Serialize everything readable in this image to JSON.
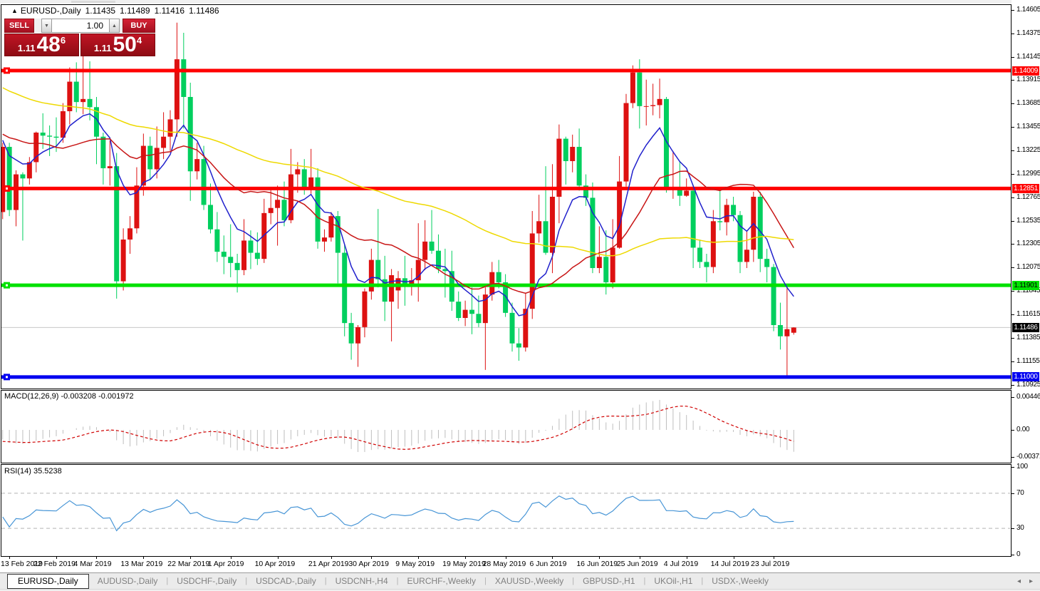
{
  "header": {
    "direction_icon": "▲",
    "symbol": "EURUSD-,Daily",
    "open": "1.11435",
    "high": "1.11489",
    "low": "1.11416",
    "close": "1.11486"
  },
  "one_click": {
    "sell_label": "SELL",
    "buy_label": "BUY",
    "volume": "1.00",
    "spinner_down_icon": "▼",
    "spinner_up_icon": "▲",
    "sell_price": {
      "prefix": "1.11",
      "digits": "48",
      "pip": "6"
    },
    "buy_price": {
      "prefix": "1.11",
      "digits": "50",
      "pip": "4"
    }
  },
  "chart_data": {
    "type": "candlestick",
    "symbol": "EURUSD-",
    "timeframe": "Daily",
    "colors": {
      "bull": "#dd1111",
      "bear": "#00cf5e",
      "ma_fast": "#2020cc",
      "ma_mid": "#c81616",
      "ma_slow": "#eed900",
      "macd_hist": "#bebebe",
      "macd_signal": "#d00000",
      "rsi": "#4795d6",
      "current_price_line": "#c8c8c8",
      "hline_red": "#ff0000",
      "hline_green": "#00e100",
      "hline_blue": "#0000f0"
    },
    "note": "bull candles are red, bear candles are green (CN color scheme)",
    "candles": [
      [
        "2019-02-12",
        1.1262,
        1.133,
        1.1255,
        1.1326
      ],
      [
        "2019-02-13",
        1.1326,
        1.133,
        1.1258,
        1.1264
      ],
      [
        "2019-02-14",
        1.1264,
        1.1303,
        1.1248,
        1.1299
      ],
      [
        "2019-02-15",
        1.1299,
        1.1301,
        1.1234,
        1.1295
      ],
      [
        "2019-02-18",
        1.1295,
        1.1316,
        1.1289,
        1.1311
      ],
      [
        "2019-02-19",
        1.1311,
        1.1341,
        1.1301,
        1.134
      ],
      [
        "2019-02-20",
        1.134,
        1.1359,
        1.1324,
        1.1337
      ],
      [
        "2019-02-21",
        1.1337,
        1.1347,
        1.1317,
        1.1336
      ],
      [
        "2019-02-22",
        1.1336,
        1.1355,
        1.1321,
        1.1335
      ],
      [
        "2019-02-25",
        1.1335,
        1.1369,
        1.133,
        1.1361
      ],
      [
        "2019-02-26",
        1.1361,
        1.1404,
        1.1348,
        1.139
      ],
      [
        "2019-02-27",
        1.139,
        1.1409,
        1.136,
        1.137
      ],
      [
        "2019-02-28",
        1.137,
        1.1421,
        1.1358,
        1.1373
      ],
      [
        "2019-03-01",
        1.1373,
        1.141,
        1.1352,
        1.1365
      ],
      [
        "2019-03-04",
        1.1365,
        1.1375,
        1.1309,
        1.1336
      ],
      [
        "2019-03-05",
        1.1336,
        1.134,
        1.1289,
        1.1305
      ],
      [
        "2019-03-06",
        1.1305,
        1.1332,
        1.1288,
        1.1307
      ],
      [
        "2019-03-07",
        1.1307,
        1.132,
        1.1177,
        1.1194
      ],
      [
        "2019-03-08",
        1.1194,
        1.1246,
        1.1185,
        1.1235
      ],
      [
        "2019-03-11",
        1.1235,
        1.1258,
        1.1221,
        1.1246
      ],
      [
        "2019-03-12",
        1.1246,
        1.1306,
        1.1241,
        1.1288
      ],
      [
        "2019-03-13",
        1.1288,
        1.1339,
        1.1278,
        1.1327
      ],
      [
        "2019-03-14",
        1.1327,
        1.1336,
        1.1294,
        1.1304
      ],
      [
        "2019-03-15",
        1.1304,
        1.1346,
        1.1295,
        1.1325
      ],
      [
        "2019-03-18",
        1.1325,
        1.136,
        1.1314,
        1.1336
      ],
      [
        "2019-03-19",
        1.1336,
        1.1362,
        1.1322,
        1.1353
      ],
      [
        "2019-03-20",
        1.1353,
        1.1448,
        1.1336,
        1.1412
      ],
      [
        "2019-03-21",
        1.1412,
        1.1438,
        1.1344,
        1.1375
      ],
      [
        "2019-03-22",
        1.1375,
        1.1389,
        1.1273,
        1.1302
      ],
      [
        "2019-03-25",
        1.1302,
        1.133,
        1.1294,
        1.1314
      ],
      [
        "2019-03-26",
        1.1314,
        1.1327,
        1.1264,
        1.1269
      ],
      [
        "2019-03-27",
        1.1269,
        1.129,
        1.1241,
        1.1245
      ],
      [
        "2019-03-28",
        1.1245,
        1.1262,
        1.1213,
        1.1223
      ],
      [
        "2019-03-29",
        1.1223,
        1.1239,
        1.1201,
        1.1218
      ],
      [
        "2019-04-01",
        1.1218,
        1.125,
        1.1198,
        1.1212
      ],
      [
        "2019-04-02",
        1.1212,
        1.1221,
        1.1183,
        1.1205
      ],
      [
        "2019-04-03",
        1.1205,
        1.1255,
        1.12,
        1.1234
      ],
      [
        "2019-04-04",
        1.1234,
        1.1244,
        1.1206,
        1.1222
      ],
      [
        "2019-04-05",
        1.1222,
        1.1242,
        1.121,
        1.1216
      ],
      [
        "2019-04-08",
        1.1216,
        1.1275,
        1.1212,
        1.1261
      ],
      [
        "2019-04-09",
        1.1261,
        1.1285,
        1.125,
        1.1266
      ],
      [
        "2019-04-10",
        1.1266,
        1.1288,
        1.1229,
        1.1274
      ],
      [
        "2019-04-11",
        1.1274,
        1.1292,
        1.1248,
        1.1254
      ],
      [
        "2019-04-12",
        1.1254,
        1.1324,
        1.1251,
        1.1299
      ],
      [
        "2019-04-15",
        1.1299,
        1.1311,
        1.1281,
        1.1304
      ],
      [
        "2019-04-16",
        1.1304,
        1.1314,
        1.1279,
        1.1284
      ],
      [
        "2019-04-17",
        1.1284,
        1.1324,
        1.128,
        1.1296
      ],
      [
        "2019-04-18",
        1.1296,
        1.1305,
        1.1226,
        1.1233
      ],
      [
        "2019-04-19",
        1.1233,
        1.1245,
        1.1223,
        1.1237
      ],
      [
        "2019-04-22",
        1.1237,
        1.1262,
        1.1233,
        1.1258
      ],
      [
        "2019-04-23",
        1.1258,
        1.1263,
        1.1192,
        1.1222
      ],
      [
        "2019-04-24",
        1.1222,
        1.123,
        1.114,
        1.1153
      ],
      [
        "2019-04-25",
        1.1153,
        1.1163,
        1.1117,
        1.1133
      ],
      [
        "2019-04-26",
        1.1133,
        1.1151,
        1.111,
        1.1149
      ],
      [
        "2019-04-29",
        1.1149,
        1.1187,
        1.1139,
        1.1184
      ],
      [
        "2019-04-30",
        1.1184,
        1.1226,
        1.1176,
        1.1215
      ],
      [
        "2019-05-01",
        1.1215,
        1.1265,
        1.1188,
        1.1196
      ],
      [
        "2019-05-02",
        1.1196,
        1.1219,
        1.1155,
        1.1174
      ],
      [
        "2019-05-03",
        1.1174,
        1.1206,
        1.1135,
        1.12
      ],
      [
        "2019-05-06",
        1.1185,
        1.1204,
        1.1167,
        1.1197
      ],
      [
        "2019-05-07",
        1.1197,
        1.1219,
        1.117,
        1.119
      ],
      [
        "2019-05-08",
        1.119,
        1.1207,
        1.118,
        1.1195
      ],
      [
        "2019-05-09",
        1.1195,
        1.1251,
        1.1174,
        1.1215
      ],
      [
        "2019-05-10",
        1.1215,
        1.1254,
        1.1205,
        1.1233
      ],
      [
        "2019-05-13",
        1.1233,
        1.1264,
        1.1221,
        1.1224
      ],
      [
        "2019-05-14",
        1.1224,
        1.124,
        1.1202,
        1.1206
      ],
      [
        "2019-05-15",
        1.1206,
        1.1226,
        1.1178,
        1.1204
      ],
      [
        "2019-05-16",
        1.1204,
        1.1224,
        1.1165,
        1.1174
      ],
      [
        "2019-05-17",
        1.1174,
        1.1184,
        1.1155,
        1.1158
      ],
      [
        "2019-05-20",
        1.1158,
        1.1175,
        1.115,
        1.1166
      ],
      [
        "2019-05-21",
        1.1166,
        1.1188,
        1.1142,
        1.1162
      ],
      [
        "2019-05-22",
        1.1162,
        1.118,
        1.1149,
        1.1153
      ],
      [
        "2019-05-23",
        1.1153,
        1.1188,
        1.1107,
        1.1181
      ],
      [
        "2019-05-24",
        1.1181,
        1.1213,
        1.1175,
        1.1203
      ],
      [
        "2019-05-27",
        1.1203,
        1.1215,
        1.1187,
        1.1193
      ],
      [
        "2019-05-28",
        1.1193,
        1.1201,
        1.1159,
        1.1163
      ],
      [
        "2019-05-29",
        1.1163,
        1.1173,
        1.1125,
        1.1133
      ],
      [
        "2019-05-30",
        1.1133,
        1.1148,
        1.1116,
        1.1129
      ],
      [
        "2019-05-31",
        1.1129,
        1.1182,
        1.1125,
        1.1167
      ],
      [
        "2019-06-03",
        1.1167,
        1.1263,
        1.1157,
        1.1241
      ],
      [
        "2019-06-04",
        1.1241,
        1.1279,
        1.1232,
        1.1253
      ],
      [
        "2019-06-05",
        1.1253,
        1.1307,
        1.122,
        1.1222
      ],
      [
        "2019-06-06",
        1.1222,
        1.1309,
        1.1202,
        1.1277
      ],
      [
        "2019-06-07",
        1.1277,
        1.1348,
        1.1251,
        1.1334
      ],
      [
        "2019-06-10",
        1.1334,
        1.1336,
        1.1289,
        1.1312
      ],
      [
        "2019-06-11",
        1.1312,
        1.1338,
        1.1301,
        1.1326
      ],
      [
        "2019-06-12",
        1.1326,
        1.1344,
        1.1283,
        1.1288
      ],
      [
        "2019-06-13",
        1.1288,
        1.1299,
        1.1268,
        1.1276
      ],
      [
        "2019-06-14",
        1.1276,
        1.1291,
        1.1202,
        1.1207
      ],
      [
        "2019-06-17",
        1.1207,
        1.1248,
        1.1202,
        1.1218
      ],
      [
        "2019-06-18",
        1.1218,
        1.1244,
        1.1181,
        1.1193
      ],
      [
        "2019-06-19",
        1.1193,
        1.1255,
        1.1187,
        1.1227
      ],
      [
        "2019-06-20",
        1.1227,
        1.1317,
        1.1226,
        1.1292
      ],
      [
        "2019-06-21",
        1.1292,
        1.1378,
        1.1287,
        1.1369
      ],
      [
        "2019-06-24",
        1.1369,
        1.1406,
        1.1364,
        1.1399
      ],
      [
        "2019-06-25",
        1.1399,
        1.1412,
        1.1344,
        1.1366
      ],
      [
        "2019-06-26",
        1.1366,
        1.1392,
        1.1347,
        1.1366
      ],
      [
        "2019-06-27",
        1.1366,
        1.1388,
        1.1357,
        1.1367
      ],
      [
        "2019-06-28",
        1.1367,
        1.1393,
        1.1354,
        1.1373
      ],
      [
        "2019-07-01",
        1.1373,
        1.1375,
        1.1281,
        1.1285
      ],
      [
        "2019-07-02",
        1.1285,
        1.1322,
        1.1275,
        1.1285
      ],
      [
        "2019-07-03",
        1.1285,
        1.1312,
        1.1268,
        1.1278
      ],
      [
        "2019-07-04",
        1.1278,
        1.1295,
        1.1277,
        1.1283
      ],
      [
        "2019-07-05",
        1.1283,
        1.1289,
        1.1207,
        1.1227
      ],
      [
        "2019-07-08",
        1.1227,
        1.1235,
        1.1207,
        1.1213
      ],
      [
        "2019-07-09",
        1.1213,
        1.1221,
        1.1193,
        1.1208
      ],
      [
        "2019-07-10",
        1.1208,
        1.1264,
        1.1202,
        1.1253
      ],
      [
        "2019-07-11",
        1.1253,
        1.1286,
        1.1244,
        1.1252
      ],
      [
        "2019-07-12",
        1.1252,
        1.1275,
        1.1239,
        1.1269
      ],
      [
        "2019-07-15",
        1.1269,
        1.1277,
        1.1253,
        1.1259
      ],
      [
        "2019-07-16",
        1.1259,
        1.1263,
        1.1202,
        1.1213
      ],
      [
        "2019-07-17",
        1.1213,
        1.1243,
        1.1207,
        1.1225
      ],
      [
        "2019-07-18",
        1.1225,
        1.1282,
        1.1213,
        1.1277
      ],
      [
        "2019-07-19",
        1.1277,
        1.1282,
        1.1203,
        1.1216
      ],
      [
        "2019-07-22",
        1.1216,
        1.1226,
        1.1193,
        1.1208
      ],
      [
        "2019-07-23",
        1.1208,
        1.1211,
        1.1145,
        1.1151
      ],
      [
        "2019-07-24",
        1.1151,
        1.1173,
        1.1127,
        1.114
      ],
      [
        "2019-07-25",
        1.114,
        1.1188,
        1.1101,
        1.1147
      ],
      [
        "2019-07-26",
        1.11435,
        1.11489,
        1.11416,
        1.11486
      ]
    ],
    "moving_averages": [
      {
        "name": "fast",
        "period": 8,
        "method": "ema",
        "color": "#2020cc"
      },
      {
        "name": "mid",
        "period": 20,
        "method": "sma",
        "color": "#c81616"
      },
      {
        "name": "slow",
        "period": 60,
        "method": "sma",
        "color": "#eed900"
      }
    ],
    "hlines": [
      {
        "price": 1.14009,
        "label": "1.14009",
        "color": "#ff0000",
        "text_color": "#ffffff"
      },
      {
        "price": 1.12851,
        "label": "1.12851",
        "color": "#ff0000",
        "text_color": "#ffffff"
      },
      {
        "price": 1.11901,
        "label": "1.11901",
        "color": "#00e100",
        "text_color": "#000000"
      },
      {
        "price": 1.11,
        "label": "1.11000",
        "color": "#0000f0",
        "text_color": "#ffffff"
      }
    ],
    "current_price": {
      "value": 1.11486,
      "label": "1.11486",
      "bg": "#000000",
      "text_color": "#ffffff"
    },
    "price_axis_ticks": [
      "1.14605",
      "1.14375",
      "1.14145",
      "1.13915",
      "1.13685",
      "1.13455",
      "1.13225",
      "1.12995",
      "1.12765",
      "1.12535",
      "1.12305",
      "1.12075",
      "1.11845",
      "1.11615",
      "1.11385",
      "1.11155",
      "1.10925"
    ],
    "date_axis": [
      {
        "text": "13 Feb 2019",
        "i": 1
      },
      {
        "text": "22 Feb 2019",
        "i": 8
      },
      {
        "text": "4 Mar 2019",
        "i": 14
      },
      {
        "text": "13 Mar 2019",
        "i": 21
      },
      {
        "text": "22 Mar 2019",
        "i": 28
      },
      {
        "text": "1 Apr 2019",
        "i": 34
      },
      {
        "text": "10 Apr 2019",
        "i": 41
      },
      {
        "text": "21 Apr 2019",
        "i": 49
      },
      {
        "text": "30 Apr 2019",
        "i": 55
      },
      {
        "text": "9 May 2019",
        "i": 62
      },
      {
        "text": "19 May 2019",
        "i": 69
      },
      {
        "text": "28 May 2019",
        "i": 75
      },
      {
        "text": "6 Jun 2019",
        "i": 82
      },
      {
        "text": "16 Jun 2019",
        "i": 89
      },
      {
        "text": "25 Jun 2019",
        "i": 95
      },
      {
        "text": "4 Jul 2019",
        "i": 102
      },
      {
        "text": "14 Jul 2019",
        "i": 109
      },
      {
        "text": "23 Jul 2019",
        "i": 115
      }
    ],
    "indicators": {
      "macd": {
        "label": "MACD(12,26,9)",
        "values": "-0.003208 -0.001972",
        "fast": 12,
        "slow": 26,
        "signal": 9,
        "axis": [
          "0.004465",
          "0.00",
          "-0.003715"
        ]
      },
      "rsi": {
        "label": "RSI(14)",
        "value": "35.5238",
        "period": 14,
        "axis": [
          "100",
          "70",
          "30",
          "0"
        ],
        "levels": [
          70,
          30
        ]
      }
    }
  },
  "tabs": {
    "active": "EURUSD-,Daily",
    "items": [
      "AUDUSD-,Daily",
      "USDCHF-,Daily",
      "USDCAD-,Daily",
      "USDCNH-,H4",
      "EURCHF-,Weekly",
      "XAUUSD-,Weekly",
      "GBPUSD-,H1",
      "UKOil-,H1",
      "USDX-,Weekly"
    ],
    "scroll_left": "◂",
    "scroll_right": "▸"
  }
}
